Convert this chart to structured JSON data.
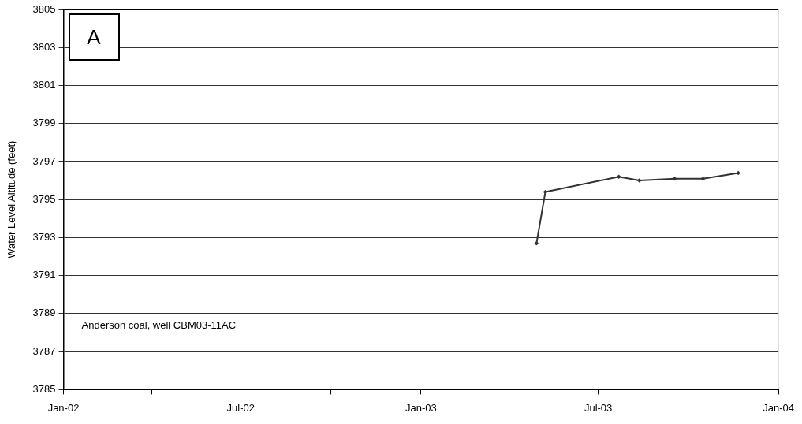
{
  "chart_data": {
    "type": "line",
    "ylabel": "Water Level Altitude (feet)",
    "annotations": [
      "A",
      "Anderson coal, well CBM03-11AC"
    ],
    "x": [
      "2003-04-29",
      "2003-05-08",
      "2003-07-22",
      "2003-08-12",
      "2003-09-17",
      "2003-10-16",
      "2003-11-21"
    ],
    "series": [
      {
        "color": "#333333",
        "values": [
          3792.7,
          3795.4,
          3796.2,
          3796.0,
          3796.1,
          3796.1,
          3796.4
        ]
      }
    ],
    "xlim": [
      "2002-01-01",
      "2004-01-01"
    ],
    "xticks": [
      {
        "value": "2002-01-01",
        "label": "Jan-02"
      },
      {
        "value": "2002-04-01",
        "label": null
      },
      {
        "value": "2002-07-01",
        "label": "Jul-02"
      },
      {
        "value": "2002-10-01",
        "label": null
      },
      {
        "value": "2003-01-01",
        "label": "Jan-03"
      },
      {
        "value": "2003-04-01",
        "label": null
      },
      {
        "value": "2003-07-01",
        "label": "Jul-03"
      },
      {
        "value": "2003-10-01",
        "label": null
      },
      {
        "value": "2004-01-01",
        "label": "Jan-04"
      }
    ],
    "ylim": [
      3785,
      3805
    ],
    "yticks": [
      3785,
      3787,
      3789,
      3791,
      3793,
      3795,
      3797,
      3799,
      3801,
      3803,
      3805
    ],
    "grid": "y",
    "legend": false,
    "marker": "diamond",
    "line_style": "solid"
  }
}
